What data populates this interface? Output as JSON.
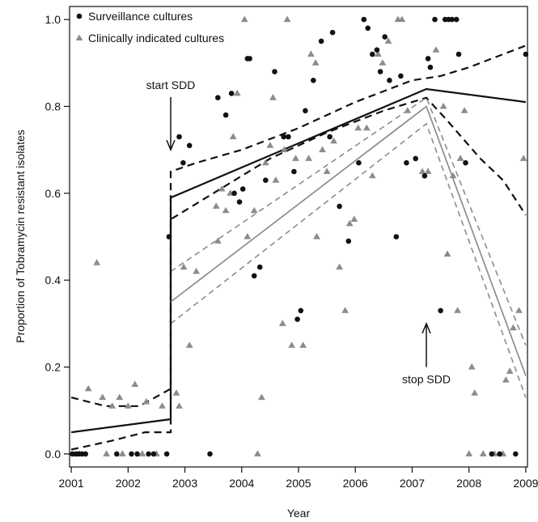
{
  "chart_data": {
    "type": "scatter",
    "xlabel": "Year",
    "ylabel": "Proportion of Tobramycin resistant isolates",
    "xlim": [
      2000.97,
      2009.03
    ],
    "ylim": [
      -0.03,
      1.03
    ],
    "x_ticks": [
      2001,
      2002,
      2003,
      2004,
      2005,
      2006,
      2007,
      2008,
      2009
    ],
    "y_ticks": [
      0.0,
      0.2,
      0.4,
      0.6,
      0.8,
      1.0
    ],
    "y_tick_labels": [
      "0.0",
      "0.2",
      "0.4",
      "0.6",
      "0.8",
      "1.0"
    ],
    "legend_position": "top-left",
    "colors": {
      "surveillance": "#111111",
      "clinical": "#8c8c8c"
    },
    "legend": [
      {
        "label": "Surveillance cultures",
        "marker": "circle",
        "color": "#111111"
      },
      {
        "label": "Clinically indicated cultures",
        "marker": "triangle",
        "color": "#8c8c8c"
      }
    ],
    "annotations": [
      {
        "text": "start SDD",
        "x": 2002.75,
        "y": 0.84,
        "arrow_to_y": 0.7,
        "arrow_direction": "down"
      },
      {
        "text": "stop SDD",
        "x": 2007.25,
        "y": 0.17,
        "arrow_to_y": 0.3,
        "arrow_direction": "up"
      }
    ],
    "series": [
      {
        "name": "Surveillance cultures",
        "marker": "circle",
        "color": "#111111",
        "points": [
          [
            2001.02,
            0
          ],
          [
            2001.08,
            0
          ],
          [
            2001.13,
            0
          ],
          [
            2001.19,
            0
          ],
          [
            2001.25,
            0
          ],
          [
            2001.8,
            0
          ],
          [
            2002.06,
            0
          ],
          [
            2002.16,
            0
          ],
          [
            2002.36,
            0
          ],
          [
            2002.45,
            0
          ],
          [
            2002.68,
            0
          ],
          [
            2002.72,
            0.5
          ],
          [
            2002.9,
            0.73
          ],
          [
            2002.97,
            0.67
          ],
          [
            2003.08,
            0.71
          ],
          [
            2003.44,
            0
          ],
          [
            2003.58,
            0.82
          ],
          [
            2003.72,
            0.78
          ],
          [
            2003.82,
            0.83
          ],
          [
            2003.87,
            0.6
          ],
          [
            2003.96,
            0.58
          ],
          [
            2004.02,
            0.61
          ],
          [
            2004.1,
            0.91
          ],
          [
            2004.14,
            0.91
          ],
          [
            2004.22,
            0.41
          ],
          [
            2004.32,
            0.43
          ],
          [
            2004.42,
            0.63
          ],
          [
            2004.58,
            0.88
          ],
          [
            2004.74,
            0.73
          ],
          [
            2004.82,
            0.73
          ],
          [
            2004.92,
            0.65
          ],
          [
            2004.98,
            0.31
          ],
          [
            2005.04,
            0.33
          ],
          [
            2005.12,
            0.79
          ],
          [
            2005.26,
            0.86
          ],
          [
            2005.4,
            0.95
          ],
          [
            2005.55,
            0.73
          ],
          [
            2005.6,
            0.97
          ],
          [
            2005.72,
            0.57
          ],
          [
            2005.88,
            0.49
          ],
          [
            2006.06,
            0.67
          ],
          [
            2006.15,
            1.0
          ],
          [
            2006.22,
            0.98
          ],
          [
            2006.3,
            0.92
          ],
          [
            2006.38,
            0.93
          ],
          [
            2006.44,
            0.88
          ],
          [
            2006.52,
            0.96
          ],
          [
            2006.6,
            0.86
          ],
          [
            2006.72,
            0.5
          ],
          [
            2006.8,
            0.87
          ],
          [
            2006.9,
            0.67
          ],
          [
            2007.06,
            0.68
          ],
          [
            2007.22,
            0.64
          ],
          [
            2007.28,
            0.91
          ],
          [
            2007.32,
            0.89
          ],
          [
            2007.4,
            1.0
          ],
          [
            2007.5,
            0.33
          ],
          [
            2007.58,
            1.0
          ],
          [
            2007.64,
            1.0
          ],
          [
            2007.7,
            1.0
          ],
          [
            2007.78,
            1.0
          ],
          [
            2007.82,
            0.92
          ],
          [
            2007.94,
            0.67
          ],
          [
            2008.4,
            0
          ],
          [
            2008.54,
            0
          ],
          [
            2008.82,
            0
          ],
          [
            2009.0,
            0.92
          ]
        ],
        "fit": [
          [
            2001.0,
            0.05
          ],
          [
            2002.75,
            0.08
          ],
          [
            2002.75,
            0.59
          ],
          [
            2007.25,
            0.84
          ],
          [
            2009.0,
            0.81
          ]
        ],
        "ci_upper": [
          [
            2001.0,
            0.13
          ],
          [
            2001.6,
            0.11
          ],
          [
            2002.2,
            0.11
          ],
          [
            2002.75,
            0.15
          ],
          [
            2002.75,
            0.65
          ],
          [
            2003.2,
            0.67
          ],
          [
            2004.0,
            0.7
          ],
          [
            2005.0,
            0.75
          ],
          [
            2006.0,
            0.81
          ],
          [
            2007.0,
            0.86
          ],
          [
            2007.5,
            0.87
          ],
          [
            2008.0,
            0.89
          ],
          [
            2009.0,
            0.94
          ]
        ],
        "ci_lower": [
          [
            2001.0,
            0.01
          ],
          [
            2001.7,
            0.03
          ],
          [
            2002.3,
            0.05
          ],
          [
            2002.75,
            0.05
          ],
          [
            2002.75,
            0.54
          ],
          [
            2003.5,
            0.6
          ],
          [
            2004.5,
            0.68
          ],
          [
            2005.5,
            0.74
          ],
          [
            2006.5,
            0.79
          ],
          [
            2007.25,
            0.82
          ],
          [
            2007.6,
            0.77
          ],
          [
            2008.2,
            0.68
          ],
          [
            2008.6,
            0.63
          ],
          [
            2009.0,
            0.55
          ]
        ]
      },
      {
        "name": "Clinically indicated cultures",
        "marker": "triangle",
        "color": "#8c8c8c",
        "points": [
          [
            2001.15,
            0
          ],
          [
            2001.3,
            0.15
          ],
          [
            2001.45,
            0.44
          ],
          [
            2001.55,
            0.13
          ],
          [
            2001.62,
            0
          ],
          [
            2001.72,
            0.11
          ],
          [
            2001.85,
            0.13
          ],
          [
            2001.9,
            0
          ],
          [
            2002.0,
            0.11
          ],
          [
            2002.12,
            0.16
          ],
          [
            2002.25,
            0
          ],
          [
            2002.32,
            0.12
          ],
          [
            2002.5,
            0
          ],
          [
            2002.6,
            0.11
          ],
          [
            2002.85,
            0.14
          ],
          [
            2002.9,
            0.11
          ],
          [
            2002.98,
            0.43
          ],
          [
            2003.08,
            0.25
          ],
          [
            2003.2,
            0.42
          ],
          [
            2003.55,
            0.57
          ],
          [
            2003.58,
            0.49
          ],
          [
            2003.65,
            0.61
          ],
          [
            2003.72,
            0.56
          ],
          [
            2003.8,
            0.6
          ],
          [
            2003.85,
            0.73
          ],
          [
            2003.92,
            0.83
          ],
          [
            2004.05,
            1.0
          ],
          [
            2004.1,
            0.5
          ],
          [
            2004.22,
            0.56
          ],
          [
            2004.28,
            0
          ],
          [
            2004.35,
            0.13
          ],
          [
            2004.42,
            0.67
          ],
          [
            2004.5,
            0.71
          ],
          [
            2004.55,
            0.82
          ],
          [
            2004.6,
            0.63
          ],
          [
            2004.72,
            0.3
          ],
          [
            2004.75,
            0.7
          ],
          [
            2004.8,
            1.0
          ],
          [
            2004.88,
            0.25
          ],
          [
            2004.95,
            0.68
          ],
          [
            2005.08,
            0.25
          ],
          [
            2005.18,
            0.68
          ],
          [
            2005.22,
            0.92
          ],
          [
            2005.3,
            0.9
          ],
          [
            2005.32,
            0.5
          ],
          [
            2005.42,
            0.7
          ],
          [
            2005.5,
            0.65
          ],
          [
            2005.62,
            0.72
          ],
          [
            2005.72,
            0.43
          ],
          [
            2005.82,
            0.33
          ],
          [
            2005.9,
            0.53
          ],
          [
            2005.98,
            0.54
          ],
          [
            2006.05,
            0.75
          ],
          [
            2006.2,
            0.75
          ],
          [
            2006.3,
            0.64
          ],
          [
            2006.4,
            0.92
          ],
          [
            2006.48,
            0.9
          ],
          [
            2006.58,
            0.95
          ],
          [
            2006.75,
            1.0
          ],
          [
            2006.82,
            1.0
          ],
          [
            2006.92,
            0.79
          ],
          [
            2007.18,
            0.65
          ],
          [
            2007.28,
            0.65
          ],
          [
            2007.42,
            0.93
          ],
          [
            2007.55,
            0.8
          ],
          [
            2007.62,
            0.46
          ],
          [
            2007.72,
            0.64
          ],
          [
            2007.8,
            0.33
          ],
          [
            2007.85,
            0.68
          ],
          [
            2007.92,
            0.79
          ],
          [
            2008.0,
            0
          ],
          [
            2008.05,
            0.2
          ],
          [
            2008.1,
            0.14
          ],
          [
            2008.25,
            0
          ],
          [
            2008.45,
            0
          ],
          [
            2008.6,
            0
          ],
          [
            2008.65,
            0.17
          ],
          [
            2008.72,
            0.19
          ],
          [
            2008.78,
            0.29
          ],
          [
            2008.88,
            0.33
          ],
          [
            2008.96,
            0.68
          ]
        ],
        "fit": [
          [
            2002.75,
            0.35
          ],
          [
            2007.25,
            0.8
          ],
          [
            2009.0,
            0.18
          ]
        ],
        "ci_upper": [
          [
            2002.75,
            0.42
          ],
          [
            2007.25,
            0.82
          ],
          [
            2009.0,
            0.25
          ]
        ],
        "ci_lower": [
          [
            2002.75,
            0.3
          ],
          [
            2007.25,
            0.76
          ],
          [
            2009.0,
            0.13
          ]
        ]
      }
    ]
  }
}
